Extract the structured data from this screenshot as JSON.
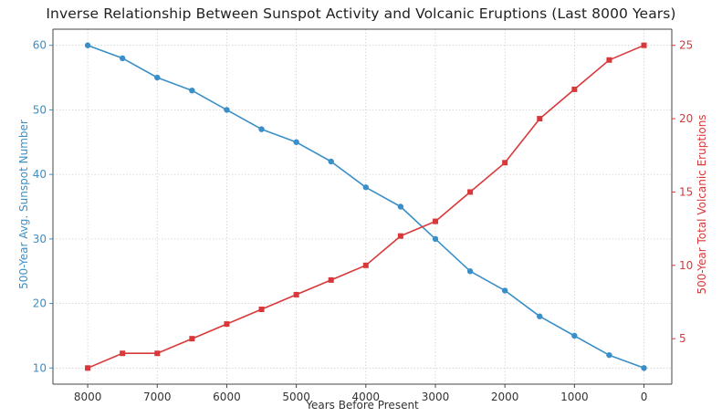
{
  "chart_data": {
    "type": "line",
    "title": "Inverse Relationship Between Sunspot Activity and Volcanic Eruptions (Last 8000 Years)",
    "xlabel": "Years Before Present",
    "ylabel_left": "500-Year Avg. Sunspot Number",
    "ylabel_right": "500-Year Total Volcanic Eruptions",
    "x": [
      8000,
      7500,
      7000,
      6500,
      6000,
      5500,
      5000,
      4500,
      4000,
      3500,
      3000,
      2500,
      2000,
      1500,
      1000,
      500,
      0
    ],
    "x_reversed": true,
    "xlim": [
      8500,
      -400
    ],
    "xticks": [
      8000,
      7000,
      6000,
      5000,
      4000,
      3000,
      2000,
      1000,
      0
    ],
    "series": [
      {
        "name": "500-Year Avg. Sunspot Number",
        "axis": "left",
        "color": "#3a8fc8",
        "marker": "circle",
        "values": [
          60,
          58,
          55,
          53,
          50,
          47,
          45,
          42,
          38,
          35,
          30,
          25,
          22,
          18,
          15,
          12,
          10
        ]
      },
      {
        "name": "500-Year Total Volcanic Eruptions",
        "axis": "right",
        "color": "#d9383a",
        "marker": "square",
        "values": [
          3,
          4,
          4,
          5,
          6,
          7,
          8,
          9,
          10,
          12,
          13,
          15,
          17,
          20,
          22,
          24,
          25
        ]
      }
    ],
    "ylim_left": [
      7.5,
      62.5
    ],
    "yticks_left": [
      10,
      20,
      30,
      40,
      50,
      60
    ],
    "ylim_right": [
      1.9,
      26.1
    ],
    "yticks_right": [
      5,
      10,
      15,
      20,
      25
    ],
    "grid": true,
    "grid_style": "dotted"
  }
}
